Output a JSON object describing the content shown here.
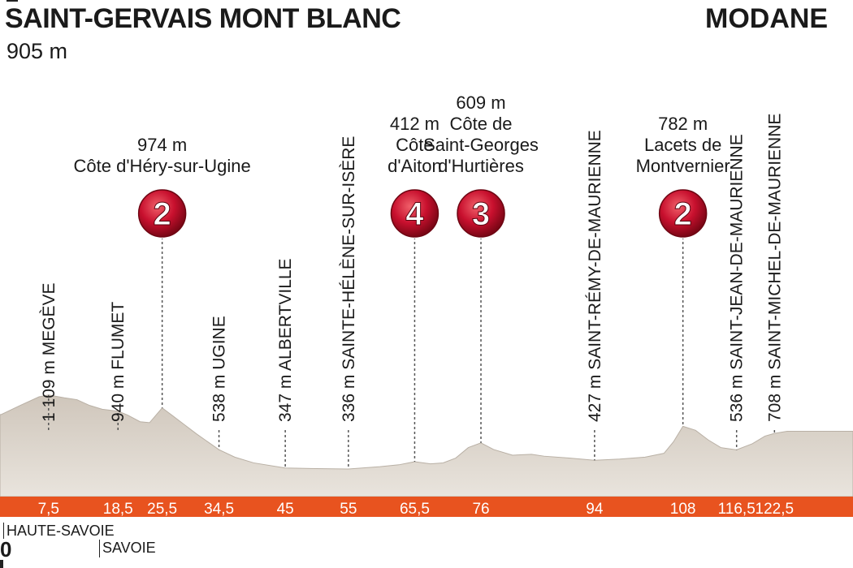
{
  "header": {
    "start_town": "SAINT-GERVAIS MONT BLANC",
    "start_altitude": "905 m",
    "finish_town": "MODANE"
  },
  "colors": {
    "profile_fill": "#ddd6cc",
    "profile_edge": "#b9b0a5",
    "distance_bar": "#e8531f",
    "badge_red": "#c8102e",
    "marker_line": "#555555"
  },
  "climbs": [
    {
      "km": 25.5,
      "category": "2",
      "altitude_label": "974 m",
      "name_lines": [
        "Côte d'Héry-sur-Ugine"
      ],
      "icon": "climb-category-badge"
    },
    {
      "km": 65.5,
      "category": "4",
      "altitude_label": "412 m",
      "name_lines": [
        "Côte",
        "d'Aiton"
      ],
      "icon": "climb-category-badge"
    },
    {
      "km": 76,
      "category": "3",
      "altitude_label": "609 m",
      "name_lines": [
        "Côte de",
        "Saint-Georges",
        "d'Hurtières"
      ],
      "icon": "climb-category-badge"
    },
    {
      "km": 108,
      "category": "2",
      "altitude_label": "782 m",
      "name_lines": [
        "Lacets de",
        "Montvernier"
      ],
      "icon": "climb-category-badge"
    }
  ],
  "towns": [
    {
      "km": 7.5,
      "label": "1 109 m MEGÈVE"
    },
    {
      "km": 18.5,
      "label": "940 m FLUMET"
    },
    {
      "km": 34.5,
      "label": "538 m UGINE"
    },
    {
      "km": 45,
      "label": "347 m  ALBERTVILLE"
    },
    {
      "km": 55,
      "label": "336 m SAINTE-HÉLÈNE-SUR-ISÈRE"
    },
    {
      "km": 94,
      "label": "427 m SAINT-RÉMY-DE-MAURIENNE"
    },
    {
      "km": 116.5,
      "label": "536 m SAINT-JEAN-DE-MAURIENNE"
    },
    {
      "km": 122.5,
      "label": "708 m SAINT-MICHEL-DE-MAURIENNE"
    }
  ],
  "distance_ticks": [
    {
      "km": 7.5,
      "label": "7,5"
    },
    {
      "km": 18.5,
      "label": "18,5"
    },
    {
      "km": 25.5,
      "label": "25,5"
    },
    {
      "km": 34.5,
      "label": "34,5"
    },
    {
      "km": 45,
      "label": "45"
    },
    {
      "km": 55,
      "label": "55"
    },
    {
      "km": 65.5,
      "label": "65,5"
    },
    {
      "km": 76,
      "label": "76"
    },
    {
      "km": 94,
      "label": "94"
    },
    {
      "km": 108,
      "label": "108"
    },
    {
      "km": 116.5,
      "label": "116,5"
    },
    {
      "km": 122.5,
      "label": "122,5"
    }
  ],
  "regions": [
    {
      "label": "HAUTE-SAVOIE"
    },
    {
      "label": "SAVOIE"
    }
  ],
  "start_km": "0",
  "profile": {
    "elevations_m": [
      {
        "km": 0,
        "m": 905
      },
      {
        "km": 3,
        "m": 1000
      },
      {
        "km": 6,
        "m": 1090
      },
      {
        "km": 7.5,
        "m": 1109
      },
      {
        "km": 10,
        "m": 1080
      },
      {
        "km": 12,
        "m": 1060
      },
      {
        "km": 14,
        "m": 1000
      },
      {
        "km": 16,
        "m": 960
      },
      {
        "km": 18.5,
        "m": 940
      },
      {
        "km": 20,
        "m": 900
      },
      {
        "km": 22,
        "m": 830
      },
      {
        "km": 23.5,
        "m": 820
      },
      {
        "km": 25.5,
        "m": 974
      },
      {
        "km": 27,
        "m": 900
      },
      {
        "km": 29,
        "m": 800
      },
      {
        "km": 31,
        "m": 700
      },
      {
        "km": 34.5,
        "m": 538
      },
      {
        "km": 37,
        "m": 460
      },
      {
        "km": 40,
        "m": 400
      },
      {
        "km": 45,
        "m": 347
      },
      {
        "km": 50,
        "m": 340
      },
      {
        "km": 55,
        "m": 336
      },
      {
        "km": 60,
        "m": 360
      },
      {
        "km": 63,
        "m": 380
      },
      {
        "km": 65.5,
        "m": 412
      },
      {
        "km": 68,
        "m": 390
      },
      {
        "km": 70,
        "m": 400
      },
      {
        "km": 72,
        "m": 450
      },
      {
        "km": 74,
        "m": 560
      },
      {
        "km": 76,
        "m": 609
      },
      {
        "km": 78,
        "m": 540
      },
      {
        "km": 81,
        "m": 480
      },
      {
        "km": 84,
        "m": 490
      },
      {
        "km": 86,
        "m": 470
      },
      {
        "km": 90,
        "m": 450
      },
      {
        "km": 94,
        "m": 427
      },
      {
        "km": 98,
        "m": 440
      },
      {
        "km": 102,
        "m": 460
      },
      {
        "km": 105,
        "m": 500
      },
      {
        "km": 106.5,
        "m": 620
      },
      {
        "km": 108,
        "m": 782
      },
      {
        "km": 110,
        "m": 740
      },
      {
        "km": 112,
        "m": 640
      },
      {
        "km": 114,
        "m": 560
      },
      {
        "km": 116.5,
        "m": 536
      },
      {
        "km": 119,
        "m": 600
      },
      {
        "km": 121,
        "m": 680
      },
      {
        "km": 122.5,
        "m": 708
      },
      {
        "km": 124.5,
        "m": 730
      }
    ]
  }
}
